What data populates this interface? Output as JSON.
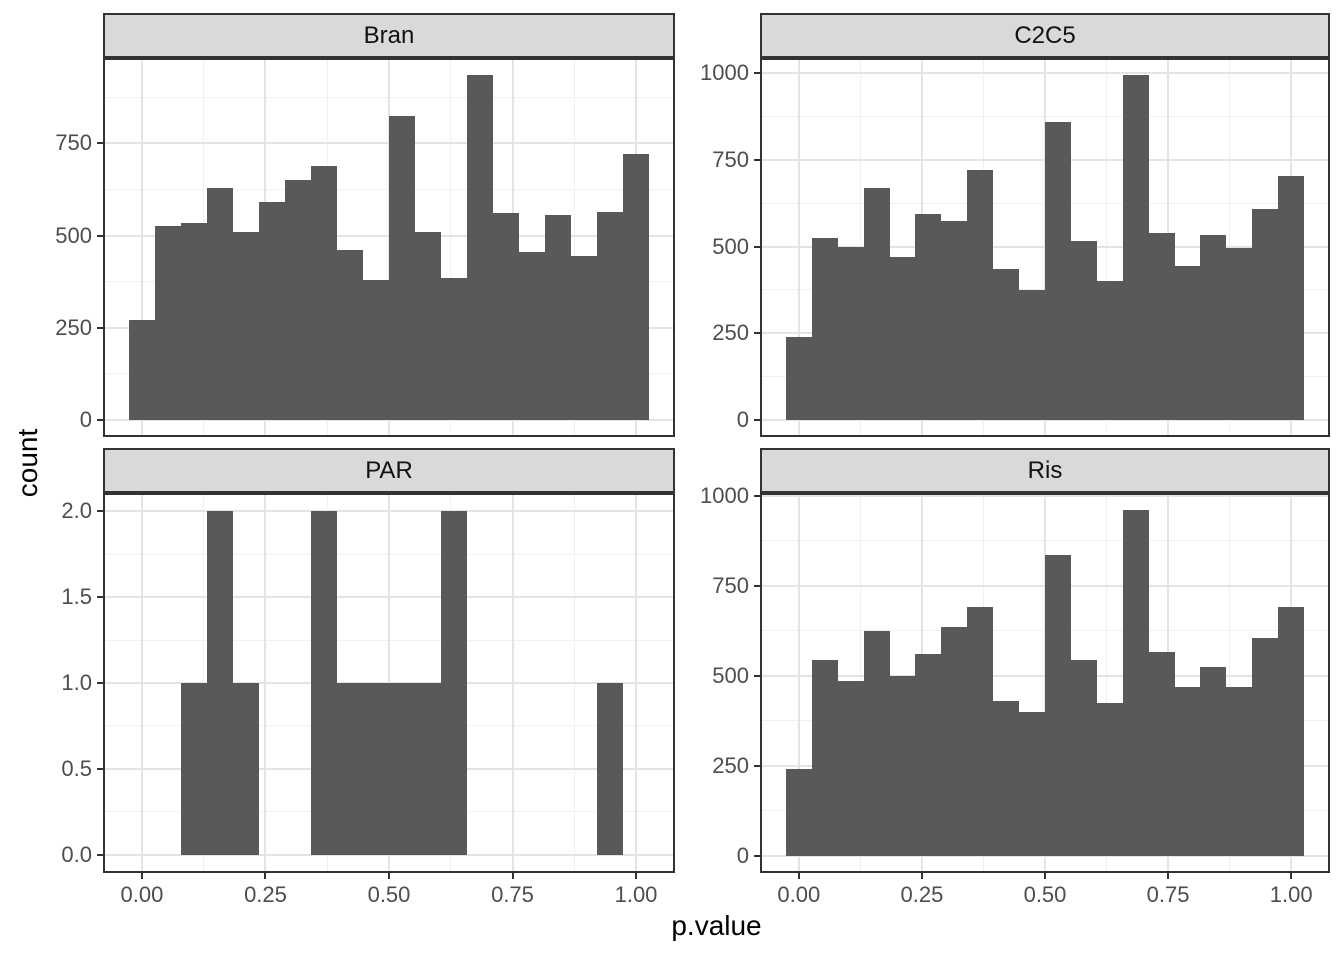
{
  "chart_data": {
    "type": "bar",
    "subtype": "faceted-histogram",
    "title": "",
    "xlabel": "p.value",
    "ylabel": "count",
    "legend": "none",
    "grid": "on",
    "x_domain": [
      -0.0789,
      1.0789
    ],
    "x_ticks": {
      "values": [
        0,
        0.25,
        0.5,
        0.75,
        1.0
      ],
      "labels": [
        "0.00",
        "0.25",
        "0.50",
        "0.75",
        "1.00"
      ]
    },
    "bin_width": 0.05263,
    "bin_centers": [
      0,
      0.0526,
      0.1053,
      0.1579,
      0.2105,
      0.2632,
      0.3158,
      0.3684,
      0.4211,
      0.4737,
      0.5263,
      0.5789,
      0.6316,
      0.6842,
      0.7368,
      0.7895,
      0.8421,
      0.8947,
      0.9474,
      1.0
    ],
    "facets": [
      {
        "label": "Bran",
        "y_domain": [
          -46.75,
          981.75
        ],
        "y_ticks": {
          "values": [
            0,
            250,
            500,
            750
          ],
          "labels": [
            "0",
            "250",
            "500",
            "750"
          ]
        },
        "counts": [
          270,
          525,
          535,
          630,
          510,
          590,
          650,
          690,
          460,
          380,
          825,
          510,
          385,
          935,
          560,
          455,
          555,
          445,
          565,
          720
        ]
      },
      {
        "label": "C2C5",
        "y_domain": [
          -49.75,
          1044.75
        ],
        "y_ticks": {
          "values": [
            0,
            250,
            500,
            750,
            1000
          ],
          "labels": [
            "0",
            "250",
            "500",
            "750",
            "1000"
          ]
        },
        "counts": [
          240,
          525,
          500,
          670,
          470,
          595,
          575,
          720,
          435,
          375,
          860,
          515,
          400,
          995,
          540,
          445,
          535,
          495,
          610,
          705
        ]
      },
      {
        "label": "PAR",
        "y_domain": [
          -0.105,
          2.105
        ],
        "y_ticks": {
          "values": [
            0,
            0.5,
            1.0,
            1.5,
            2.0
          ],
          "labels": [
            "0.0",
            "0.5",
            "1.0",
            "1.5",
            "2.0"
          ]
        },
        "counts": [
          0,
          0,
          1,
          2,
          1,
          0,
          0,
          2,
          1,
          1,
          1,
          1,
          2,
          0,
          0,
          0,
          0,
          0,
          1,
          0
        ]
      },
      {
        "label": "Ris",
        "y_domain": [
          -48,
          1008
        ],
        "y_ticks": {
          "values": [
            0,
            250,
            500,
            750,
            1000
          ],
          "labels": [
            "0",
            "250",
            "500",
            "750",
            "1000"
          ]
        },
        "counts": [
          240,
          545,
          485,
          625,
          500,
          560,
          635,
          690,
          430,
          400,
          835,
          545,
          425,
          960,
          565,
          470,
          525,
          470,
          605,
          690
        ]
      }
    ],
    "colors": {
      "bar_fill": "#595959",
      "strip_background": "#D9D9D9",
      "panel_border": "#333333",
      "grid_major": "#E4E4E4",
      "grid_minor": "#F1F1F1",
      "tick_label": "#4D4D4D",
      "axis_title": "#000000"
    }
  }
}
